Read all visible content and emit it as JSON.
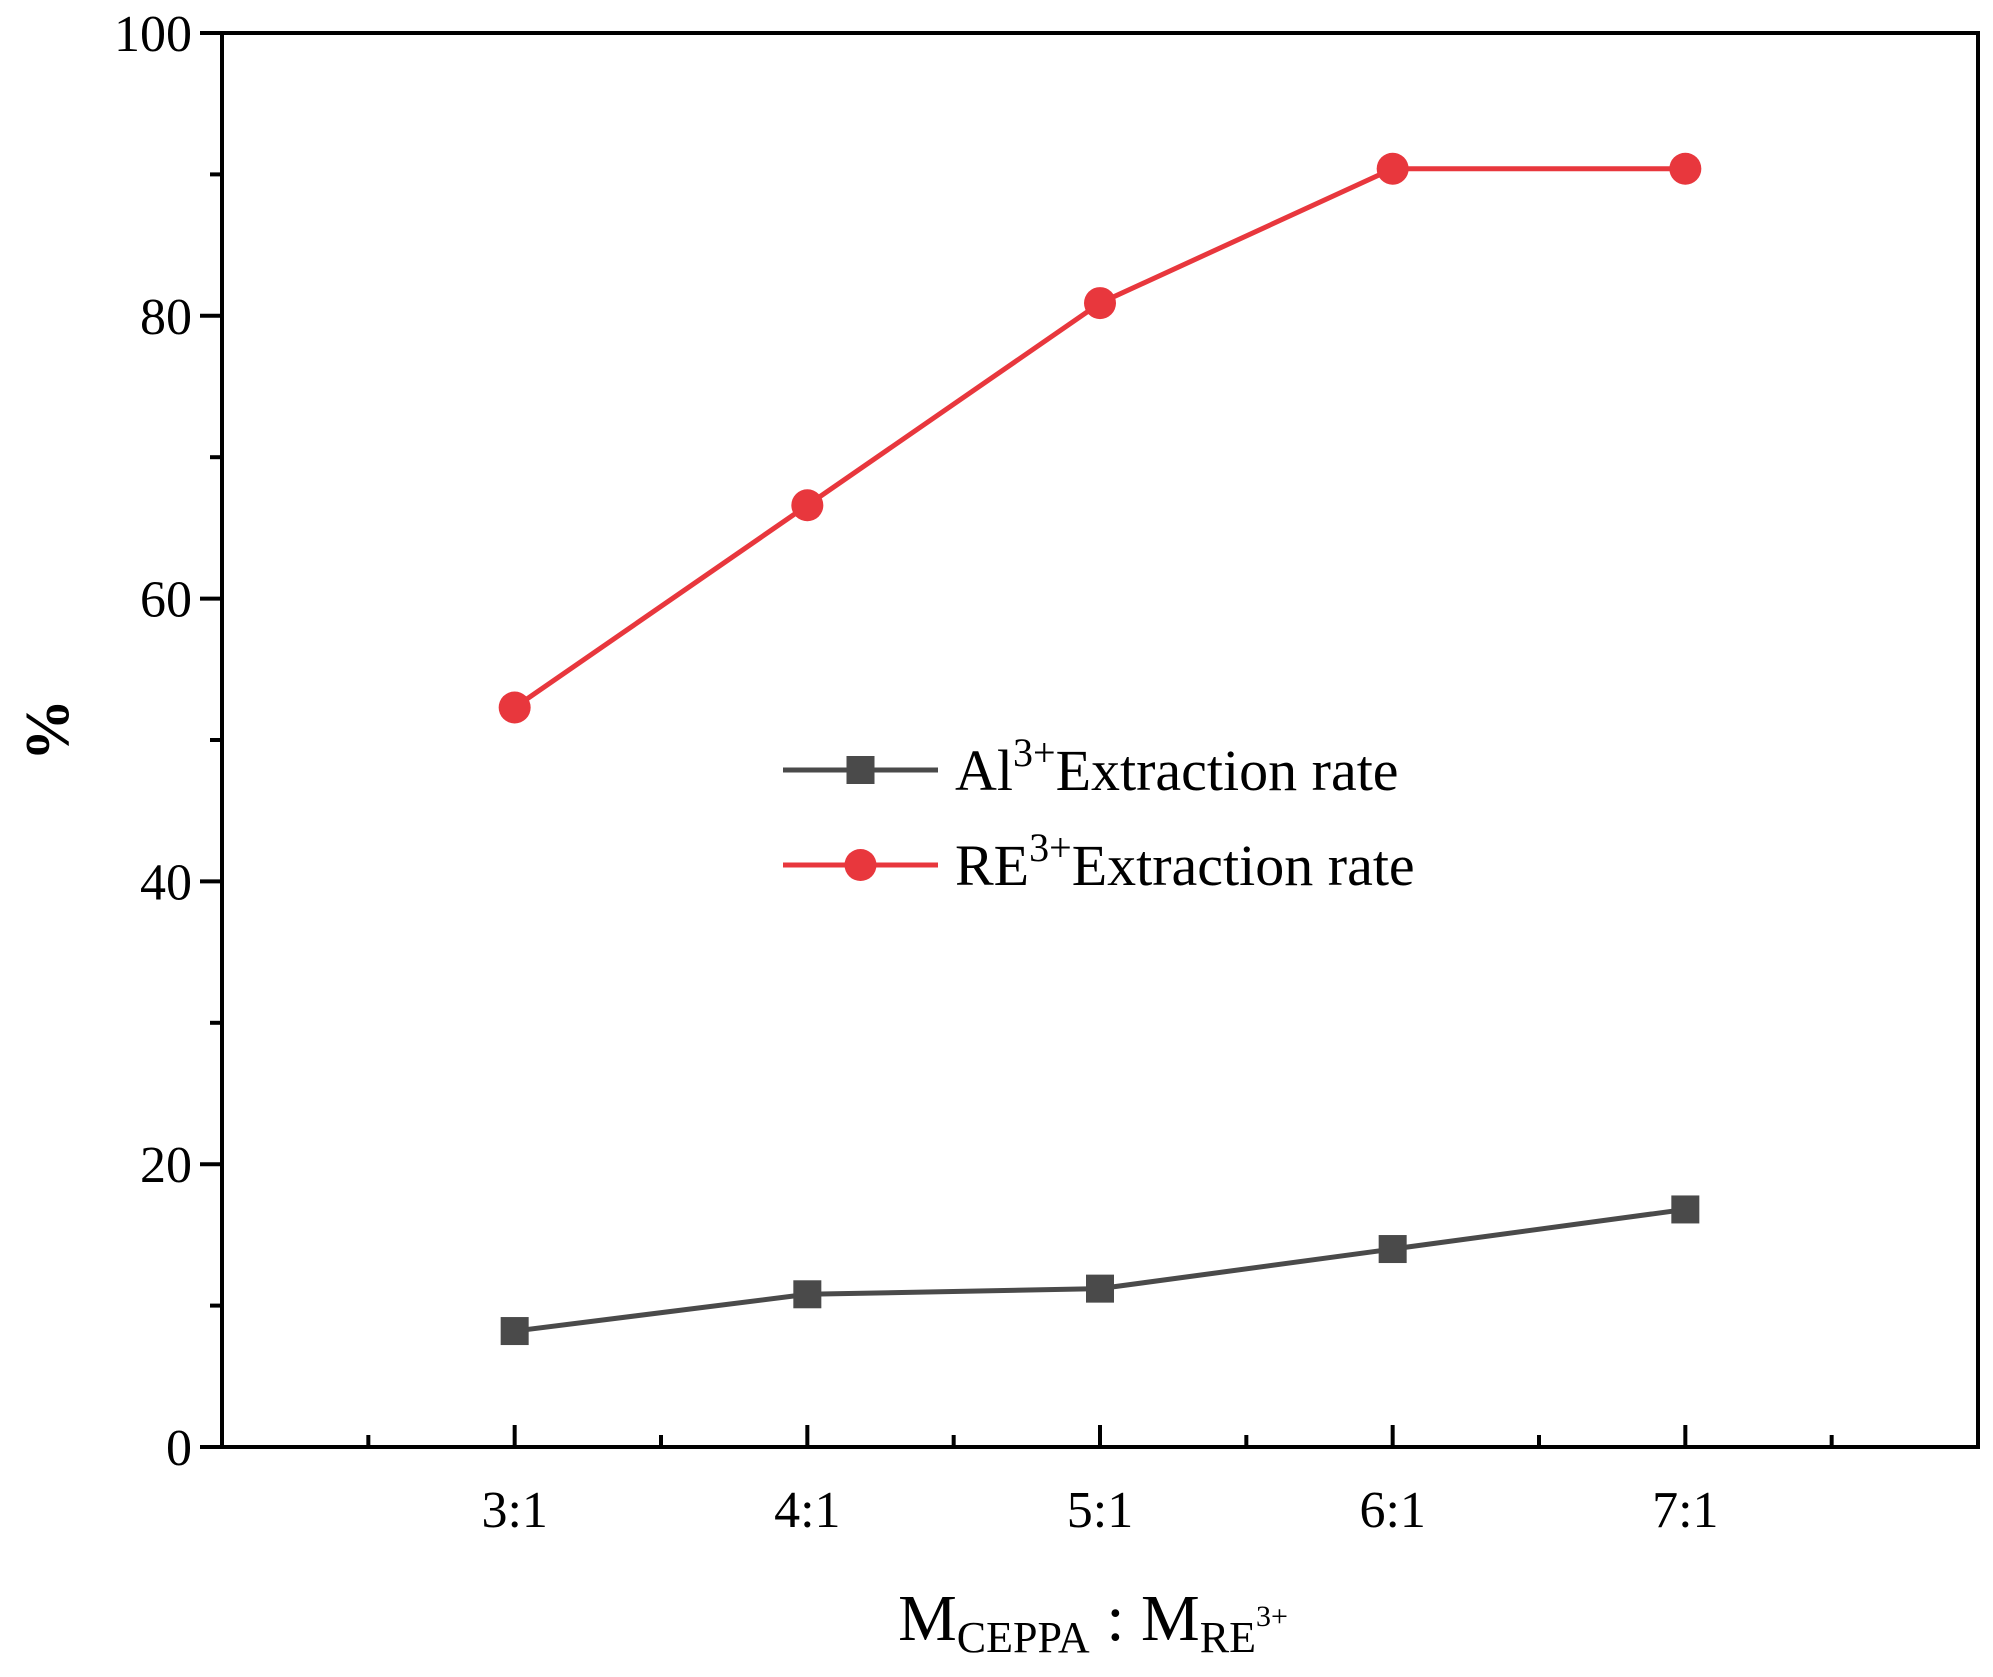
{
  "chart_data": {
    "type": "line",
    "title": "",
    "categories": [
      "3:1",
      "4:1",
      "5:1",
      "6:1",
      "7:1"
    ],
    "series": [
      {
        "name": "Al3+ Extraction rate",
        "legend_base": "Al",
        "legend_sup": "3+",
        "legend_rest": "Extraction rate",
        "color": "#4a4a4a",
        "marker": "square",
        "values": [
          8.2,
          10.8,
          11.2,
          14.0,
          16.8
        ]
      },
      {
        "name": "RE3+ Extraction rate",
        "legend_base": "RE",
        "legend_sup": "3+",
        "legend_rest": "Extraction rate",
        "color": "#e8373d",
        "marker": "circle",
        "values": [
          52.3,
          66.6,
          80.9,
          90.4,
          90.4
        ]
      }
    ],
    "xlabel": {
      "m1": "M",
      "m1_sub": "CEPPA",
      "colon": " : ",
      "m2": "M",
      "m2_sub": "RE",
      "m2_sub_sup": "3+"
    },
    "ylabel": "%",
    "ylim": [
      0,
      100
    ],
    "yticks": [
      "0",
      "20",
      "40",
      "60",
      "80",
      "100"
    ],
    "legend_position": "center-right",
    "grid": false
  }
}
